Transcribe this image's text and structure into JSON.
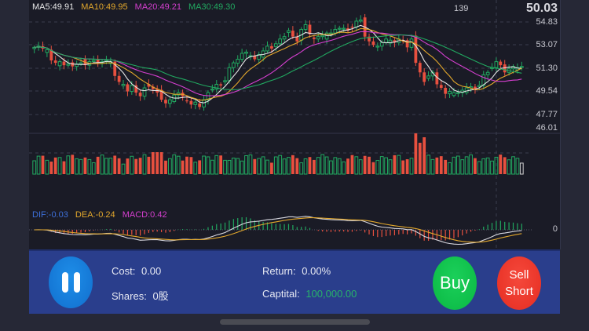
{
  "header": {
    "ma_legend": [
      {
        "label": "MA5:49.91",
        "color": "#e6e6e6"
      },
      {
        "label": "MA10:49.95",
        "color": "#e3a82c"
      },
      {
        "label": "MA20:49.21",
        "color": "#d63fd0"
      },
      {
        "label": "MA30:49.30",
        "color": "#21a860"
      }
    ],
    "bar_index": "139",
    "current_price": "50.03"
  },
  "price_axis": [
    "54.83",
    "53.07",
    "51.30",
    "49.54",
    "47.77",
    "46.01"
  ],
  "macd": {
    "legend": [
      {
        "label": "DIF:-0.03",
        "color": "#3d6fd8"
      },
      {
        "label": "DEA:-0.24",
        "color": "#e3a82c"
      },
      {
        "label": "MACD:0.42",
        "color": "#d63fd0"
      }
    ],
    "zero_label": "0"
  },
  "colors": {
    "up": "#21a860",
    "down": "#e8503f",
    "ma5": "#e6e6e6",
    "ma10": "#e3a82c",
    "ma20": "#d63fd0",
    "ma30": "#21a860",
    "grid": "#3b3d4d"
  },
  "panel": {
    "cost_label": "Cost:",
    "cost_value": "0.00",
    "shares_label": "Shares:",
    "shares_value": "0股",
    "return_label": "Return:",
    "return_value": "0.00%",
    "capital_label": "Captital:",
    "capital_value": "100,000.00",
    "buy_label": "Buy",
    "sell_label_1": "Sell",
    "sell_label_2": "Short",
    "pause_icon": "pause-icon"
  },
  "chart_data": {
    "type": "candlestick",
    "title": "",
    "price_range": [
      46.01,
      54.83
    ],
    "y_ticks": [
      54.83,
      53.07,
      51.3,
      49.54,
      47.77,
      46.01
    ],
    "candles_close_approx": [
      52.7,
      52.8,
      52.6,
      52.5,
      51.6,
      51.4,
      51.5,
      51.2,
      51.3,
      51.1,
      51.3,
      51.4,
      51.2,
      51.5,
      51.6,
      51.4,
      51.5,
      51.6,
      51.5,
      50.3,
      49.8,
      49.6,
      49.0,
      49.5,
      48.9,
      48.6,
      49.3,
      49.4,
      49.2,
      48.9,
      48.3,
      48.0,
      48.3,
      48.7,
      48.9,
      48.6,
      48.2,
      47.9,
      48.1,
      47.7,
      48.3,
      48.9,
      49.2,
      49.6,
      49.5,
      49.9,
      51.0,
      51.4,
      51.7,
      52.2,
      52.3,
      52.0,
      51.7,
      52.1,
      52.4,
      52.8,
      52.6,
      53.0,
      53.4,
      53.6,
      54.1,
      53.6,
      53.2,
      54.2,
      54.6,
      53.8,
      53.4,
      53.6,
      53.7,
      53.9,
      53.9,
      54.2,
      54.3,
      54.3,
      54.1,
      54.4,
      54.9,
      55.0,
      53.6,
      53.2,
      52.9,
      52.8,
      53.1,
      53.4,
      53.3,
      53.1,
      53.4,
      53.3,
      52.7,
      53.4,
      51.4,
      50.6,
      49.8,
      50.3,
      50.6,
      49.6,
      49.3,
      48.8,
      49.0,
      48.9,
      48.9,
      49.1,
      49.3,
      49.4,
      49.2,
      49.5,
      50.4,
      50.6,
      51.0,
      51.5,
      51.2,
      50.6,
      50.9,
      51.1,
      51.0,
      51.1
    ],
    "volume_panel": {
      "type": "bar",
      "note": "red = down, green outline = up"
    },
    "macd_panel": {
      "dif": -0.03,
      "dea": -0.24,
      "macd": 0.42,
      "zero_line": 0
    },
    "moving_averages": {
      "MA5": 49.91,
      "MA10": 49.95,
      "MA20": 49.21,
      "MA30": 49.3
    }
  }
}
